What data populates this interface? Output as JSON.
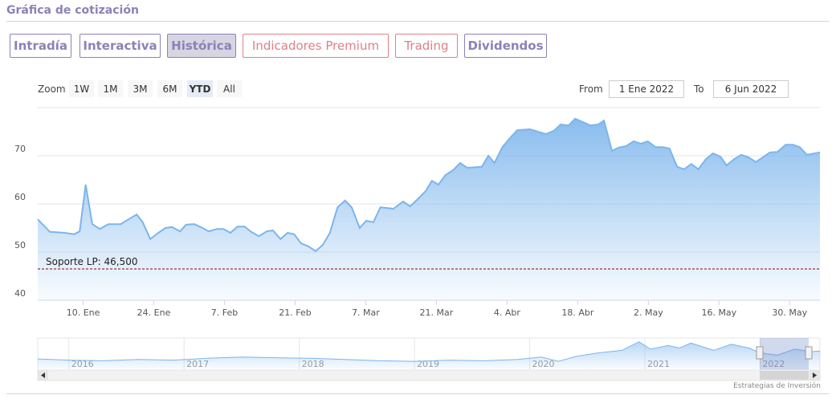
{
  "header": {
    "title": "Gráfica de cotización"
  },
  "tabs": [
    "Intradía",
    "Interactiva",
    "Histórica",
    "Indicadores Premium",
    "Trading",
    "Dividendos"
  ],
  "selected_tab": "Histórica",
  "zoom": {
    "label": "Zoom",
    "buttons": [
      "1W",
      "1M",
      "3M",
      "6M",
      "YTD",
      "All"
    ],
    "selected": "YTD"
  },
  "range": {
    "from_label": "From",
    "from": "1 Ene 2022",
    "to_label": "To",
    "to": "6 Jun 2022"
  },
  "chart_data": {
    "type": "area",
    "color": "#7cb5ec",
    "x": [
      1,
      3.4,
      6.3,
      8.2,
      9.3,
      10.5,
      11.8,
      13.3,
      15,
      17.4,
      19,
      20.6,
      21.8,
      23.3,
      24.9,
      26.3,
      27.6,
      29.2,
      30.4,
      32,
      33.3,
      34.9,
      36.5,
      37.8,
      39.2,
      40.6,
      42,
      43.3,
      44.8,
      46.4,
      47.6,
      49.1,
      50.5,
      51.8,
      53.2,
      54.6,
      56.1,
      57.5,
      58.9,
      60.4,
      61.9,
      63.2,
      64.8,
      66.1,
      67.5,
      68.9,
      71.5,
      73.4,
      74.8,
      76.3,
      77.9,
      79.1,
      80.4,
      81.8,
      83.3,
      84.7,
      86.1,
      89,
      90.3,
      91.5,
      93.1,
      94.6,
      96,
      98.5,
      100.1,
      101.7,
      103.3,
      104.6,
      106.2,
      107.5,
      109,
      110.5,
      112.1,
      113.2,
      114.8,
      116.1,
      117.6,
      119.1,
      120.5,
      121.9,
      123.4,
      124.8,
      126.2,
      127.7,
      129.1,
      130.5,
      131.9,
      133.4,
      134.8,
      136.3,
      137.5,
      139,
      140.4,
      141.8,
      143.3,
      144.7,
      146.1,
      147.6,
      149.2,
      150.6,
      152,
      153.4,
      156
    ],
    "values": [
      56.8,
      54.2,
      54,
      53.7,
      54.3,
      64,
      55.8,
      54.8,
      55.8,
      55.8,
      56.8,
      57.8,
      56.2,
      52.7,
      54,
      55,
      55.2,
      54.3,
      55.7,
      55.8,
      55.2,
      54.3,
      54.8,
      54.8,
      54,
      55.3,
      55.3,
      54.2,
      53.3,
      54.3,
      54.5,
      52.7,
      54,
      53.7,
      51.8,
      51.2,
      50.2,
      51.5,
      54,
      59.3,
      60.7,
      59.3,
      55,
      56.5,
      56.2,
      59.3,
      59,
      60.5,
      59.5,
      61,
      62.7,
      64.8,
      64,
      66,
      67,
      68.5,
      67.5,
      67.7,
      70,
      68.5,
      71.8,
      73.7,
      75.3,
      75.5,
      75,
      74.5,
      75.2,
      76.5,
      76.3,
      77.7,
      77,
      76.3,
      76.5,
      77.3,
      71,
      71.7,
      72,
      73,
      72.5,
      73,
      71.8,
      71.8,
      71.5,
      67.7,
      67.2,
      68.3,
      67.2,
      69.3,
      70.5,
      69.8,
      68,
      69.3,
      70.2,
      69.7,
      68.7,
      69.7,
      70.7,
      70.8,
      72.3,
      72.3,
      71.8,
      70.2,
      70.7
    ],
    "xlim": [
      1,
      156
    ],
    "xticks": [
      {
        "value": 10,
        "label": "10. Ene"
      },
      {
        "value": 24,
        "label": "24. Ene"
      },
      {
        "value": 38,
        "label": "7. Feb"
      },
      {
        "value": 52,
        "label": "21. Feb"
      },
      {
        "value": 66,
        "label": "7. Mar"
      },
      {
        "value": 80,
        "label": "21. Mar"
      },
      {
        "value": 94,
        "label": "4. Abr"
      },
      {
        "value": 108,
        "label": "18. Abr"
      },
      {
        "value": 122,
        "label": "2. May"
      },
      {
        "value": 136,
        "label": "16. May"
      },
      {
        "value": 150,
        "label": "30. May"
      }
    ],
    "ylim": [
      40,
      80
    ],
    "yticks": [
      40,
      50,
      60,
      70
    ],
    "grid": true,
    "annotation": {
      "text": "Soporte LP: 46,500",
      "value": 46.5,
      "color": "#8b0000"
    }
  },
  "navigator": {
    "x": [
      2015.73,
      2016.0,
      2016.3,
      2016.6,
      2016.9,
      2017.2,
      2017.5,
      2017.8,
      2018.1,
      2018.4,
      2018.7,
      2019.0,
      2019.3,
      2019.6,
      2019.9,
      2020.1,
      2020.25,
      2020.4,
      2020.6,
      2020.8,
      2020.95,
      2021.05,
      2021.2,
      2021.3,
      2021.4,
      2021.5,
      2021.6,
      2021.75,
      2021.9,
      2022.0,
      2022.15,
      2022.3,
      2022.45,
      2022.52
    ],
    "values": [
      52,
      50,
      49,
      51,
      50,
      53,
      55,
      54,
      53,
      51,
      49,
      48,
      50,
      49,
      51,
      55,
      48,
      56,
      62,
      66,
      80,
      68,
      74,
      70,
      78,
      72,
      66,
      76,
      70,
      62,
      58,
      68,
      64,
      65
    ],
    "xlim": [
      2015.73,
      2022.52
    ],
    "ylim": [
      35,
      85
    ],
    "xticks": [
      2016,
      2017,
      2018,
      2019,
      2020,
      2021,
      2022
    ]
  },
  "credit": "Estrategias de Inversión"
}
